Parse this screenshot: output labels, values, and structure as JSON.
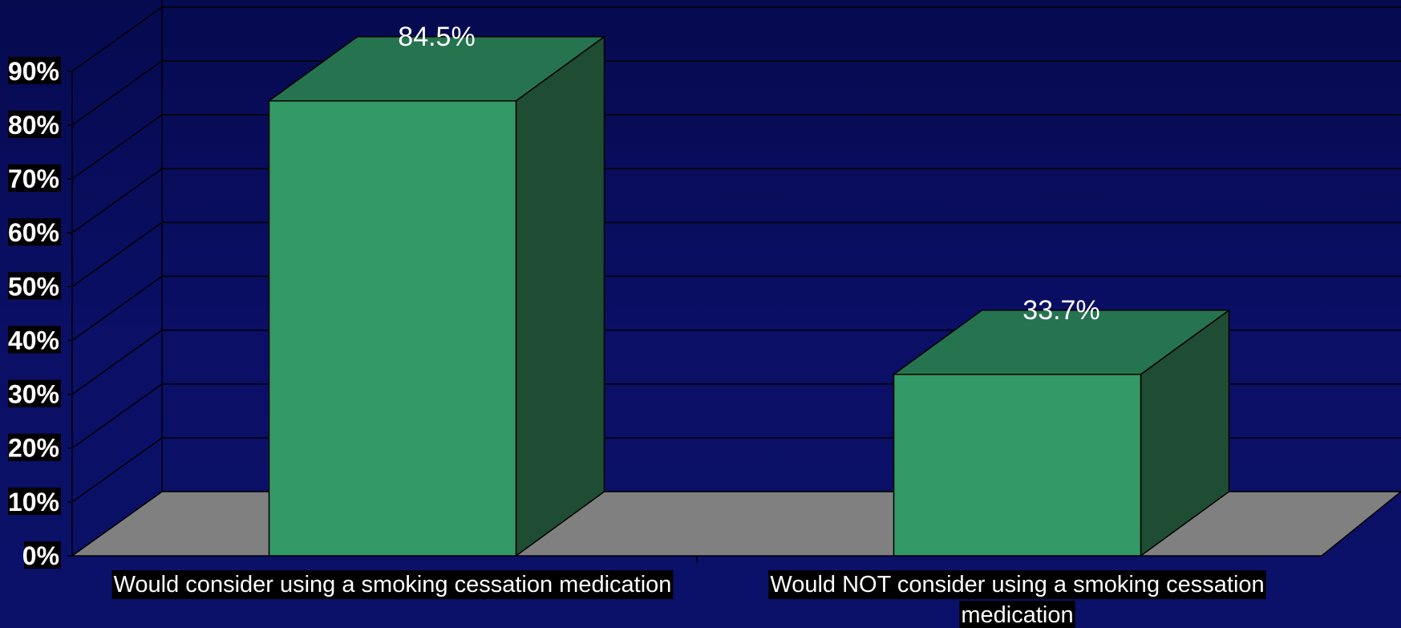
{
  "chart_data": {
    "type": "bar",
    "categories": [
      "Would consider using a smoking cessation medication",
      "Would NOT consider using a smoking cessation medication"
    ],
    "category_lines": [
      [
        "Would consider using a smoking cessation medication"
      ],
      [
        "Would NOT consider using a smoking cessation",
        "medication"
      ]
    ],
    "values": [
      84.5,
      33.7
    ],
    "data_labels": [
      "84.5%",
      "33.7%"
    ],
    "ylim": [
      0,
      90
    ],
    "yticks": [
      0,
      10,
      20,
      30,
      40,
      50,
      60,
      70,
      80,
      90
    ],
    "ytick_labels": [
      "0%",
      "10%",
      "20%",
      "30%",
      "40%",
      "50%",
      "60%",
      "70%",
      "80%",
      "90%"
    ],
    "grid": true,
    "three_d": true,
    "colors": {
      "background": "#0b0f66",
      "bar_front": "#339966",
      "bar_top": "#267350",
      "bar_side": "#1e4d33",
      "floor": "#808080",
      "grid": "#000000",
      "label_bg": "#000000",
      "text": "#ffffff"
    }
  }
}
